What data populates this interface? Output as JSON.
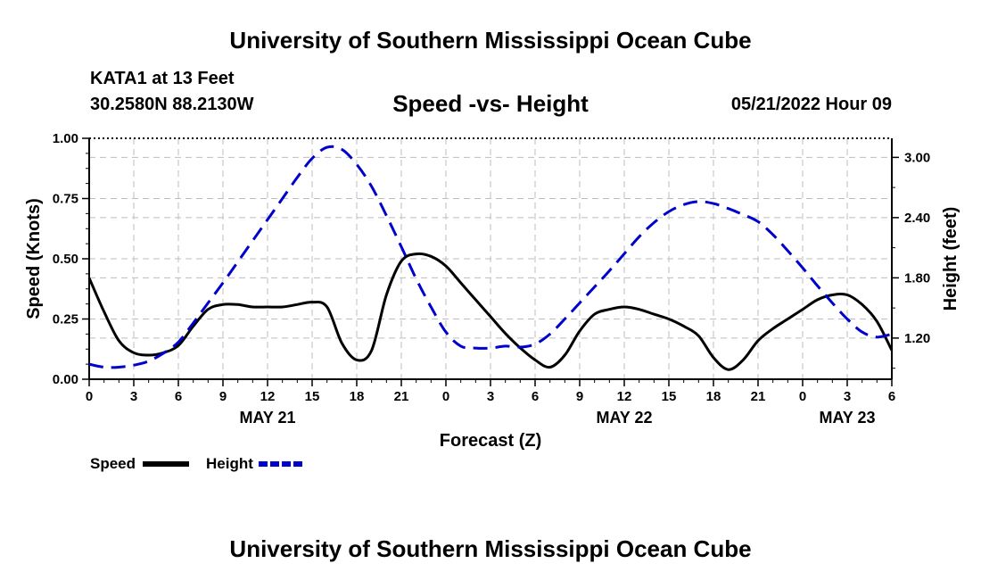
{
  "header": {
    "title": "University of Southern Mississippi Ocean Cube",
    "station": "KATA1 at 13 Feet",
    "coordinates": "30.2580N  88.2130W",
    "subtitle": "Speed -vs- Height",
    "date": "05/21/2022 Hour 09"
  },
  "footer": {
    "title": "University of Southern Mississippi Ocean Cube"
  },
  "colors": {
    "speed": "#000000",
    "height": "#0000cc",
    "grid": "#bdbdbd"
  },
  "chart_data": {
    "type": "line",
    "title": "Speed -vs- Height",
    "xlabel": "Forecast (Z)",
    "ylabel": "Speed (Knots)",
    "y2label": "Height (feet)",
    "xlim": [
      0,
      54
    ],
    "ylim": [
      0,
      1
    ],
    "y2lim": [
      0.79,
      3.19
    ],
    "x_ticks": [
      0,
      3,
      6,
      9,
      12,
      15,
      18,
      21,
      24,
      27,
      30,
      33,
      36,
      39,
      42,
      45,
      48,
      51,
      54
    ],
    "x_tick_labels": [
      "0",
      "3",
      "6",
      "9",
      "12",
      "15",
      "18",
      "21",
      "0",
      "3",
      "6",
      "9",
      "12",
      "15",
      "18",
      "21",
      "0",
      "3",
      "6"
    ],
    "date_labels": [
      {
        "x": 12,
        "label": "MAY 21"
      },
      {
        "x": 36,
        "label": "MAY 22"
      },
      {
        "x": 51,
        "label": "MAY 23"
      }
    ],
    "y_ticks": [
      0,
      0.25,
      0.5,
      0.75,
      1.0
    ],
    "y_tick_labels": [
      "0.00",
      "0.25",
      "0.50",
      "0.75",
      "1.00"
    ],
    "y2_ticks": [
      1.2,
      1.8,
      2.4,
      3.0
    ],
    "y2_tick_labels": [
      "1.20",
      "1.80",
      "2.40",
      "3.00"
    ],
    "grid": true,
    "legend": {
      "placement": "bottom-left"
    },
    "series": [
      {
        "name": "Speed",
        "axis": "left",
        "style": "solid",
        "x": [
          0,
          1,
          2,
          3,
          4,
          5,
          6,
          7,
          8,
          9,
          10,
          11,
          12,
          13,
          14,
          15,
          16,
          17,
          18,
          19,
          20,
          21,
          22,
          23,
          24,
          25,
          26,
          27,
          28,
          29,
          30,
          31,
          32,
          33,
          34,
          35,
          36,
          37,
          38,
          39,
          40,
          41,
          42,
          43,
          44,
          45,
          46,
          47,
          48,
          49,
          50,
          51,
          52,
          53,
          54
        ],
        "values": [
          0.42,
          0.28,
          0.16,
          0.11,
          0.1,
          0.11,
          0.14,
          0.22,
          0.29,
          0.31,
          0.31,
          0.3,
          0.3,
          0.3,
          0.31,
          0.32,
          0.3,
          0.15,
          0.08,
          0.12,
          0.35,
          0.49,
          0.52,
          0.51,
          0.47,
          0.4,
          0.33,
          0.26,
          0.19,
          0.13,
          0.08,
          0.05,
          0.1,
          0.2,
          0.27,
          0.29,
          0.3,
          0.29,
          0.27,
          0.25,
          0.22,
          0.18,
          0.09,
          0.04,
          0.08,
          0.16,
          0.21,
          0.25,
          0.29,
          0.33,
          0.35,
          0.35,
          0.31,
          0.24,
          0.12
        ]
      },
      {
        "name": "Height",
        "axis": "right",
        "style": "dashed",
        "x": [
          0,
          1,
          2,
          3,
          4,
          5,
          6,
          7,
          8,
          9,
          10,
          11,
          12,
          13,
          14,
          15,
          16,
          17,
          18,
          19,
          20,
          21,
          22,
          23,
          24,
          25,
          26,
          27,
          28,
          29,
          30,
          31,
          32,
          33,
          34,
          35,
          36,
          37,
          38,
          39,
          40,
          41,
          42,
          43,
          44,
          45,
          46,
          47,
          48,
          49,
          50,
          51,
          52,
          53,
          54
        ],
        "values": [
          0.94,
          0.91,
          0.91,
          0.93,
          0.97,
          1.05,
          1.16,
          1.35,
          1.55,
          1.75,
          1.96,
          2.17,
          2.38,
          2.59,
          2.8,
          2.99,
          3.1,
          3.08,
          2.93,
          2.71,
          2.42,
          2.11,
          1.79,
          1.51,
          1.26,
          1.12,
          1.1,
          1.1,
          1.12,
          1.11,
          1.14,
          1.24,
          1.39,
          1.55,
          1.71,
          1.87,
          2.04,
          2.21,
          2.35,
          2.46,
          2.53,
          2.56,
          2.54,
          2.49,
          2.43,
          2.36,
          2.23,
          2.07,
          1.9,
          1.72,
          1.55,
          1.39,
          1.26,
          1.21,
          1.24
        ]
      }
    ]
  }
}
